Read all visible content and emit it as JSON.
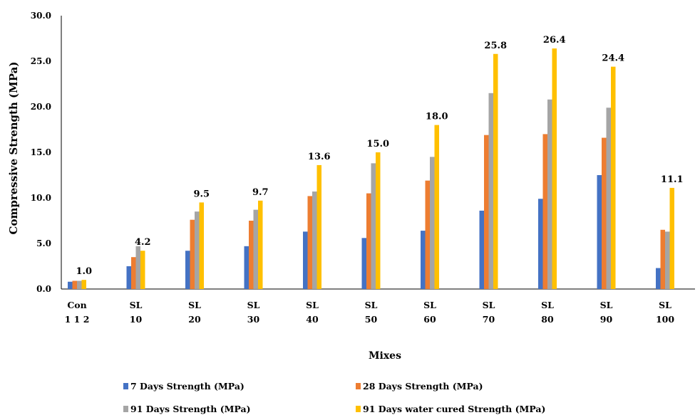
{
  "chart_data": {
    "type": "bar",
    "ylabel": "Compressive Strength (MPa)",
    "xlabel": "Mixes",
    "ylim": [
      0,
      30
    ],
    "yticks": [
      "0.0",
      "5.0",
      "10.0",
      "15.0",
      "20.0",
      "25.0",
      "30.0"
    ],
    "grid": false,
    "legend_position": "bottom",
    "categories": [
      [
        "Con",
        "1 1 2"
      ],
      [
        "SL",
        "10"
      ],
      [
        "SL",
        "20"
      ],
      [
        "SL",
        "30"
      ],
      [
        "SL",
        "40"
      ],
      [
        "SL",
        "50"
      ],
      [
        "SL",
        "60"
      ],
      [
        "SL",
        "70"
      ],
      [
        "SL",
        "80"
      ],
      [
        "SL",
        "90"
      ],
      [
        "SL",
        "100"
      ]
    ],
    "series": [
      {
        "name": "7 Days Strength (MPa)",
        "color": "#4472C4",
        "values": [
          0.8,
          2.5,
          4.2,
          4.7,
          6.3,
          5.6,
          6.4,
          8.6,
          9.9,
          12.5,
          2.3
        ]
      },
      {
        "name": "28 Days Strength (MPa)",
        "color": "#ED7D31",
        "values": [
          0.9,
          3.5,
          7.6,
          7.5,
          10.2,
          10.5,
          11.9,
          16.9,
          17.0,
          16.6,
          6.5
        ]
      },
      {
        "name": "91 Days Strength (MPa)",
        "color": "#A5A5A5",
        "values": [
          0.9,
          4.7,
          8.5,
          8.7,
          10.7,
          13.8,
          14.5,
          21.5,
          20.8,
          19.9,
          6.3
        ]
      },
      {
        "name": "91 Days water cured  Strength (MPa)",
        "color": "#FFC000",
        "values": [
          1.0,
          4.2,
          9.5,
          9.7,
          13.6,
          15.0,
          18.0,
          25.8,
          26.4,
          24.4,
          11.1
        ]
      }
    ],
    "data_labels": [
      "1.0",
      "4.2",
      "9.5",
      "9.7",
      "13.6",
      "15.0",
      "18.0",
      "25.8",
      "26.4",
      "24.4",
      "11.1"
    ],
    "data_label_series": 3
  }
}
